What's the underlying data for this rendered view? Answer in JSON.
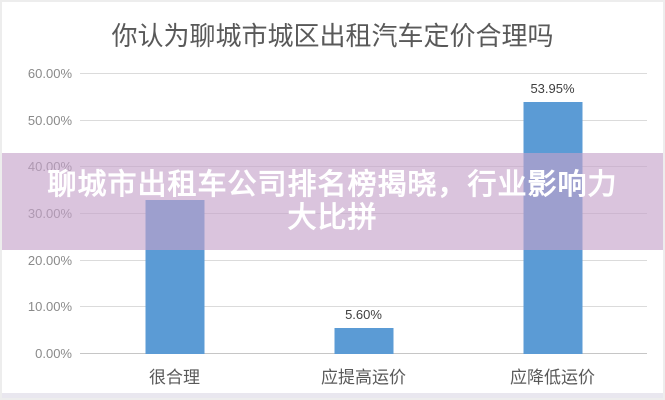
{
  "chart_data": {
    "type": "bar",
    "title": "你认为聊城市城区出租汽车定价合理吗",
    "categories": [
      "很合理",
      "应提高运价",
      "应降低运价"
    ],
    "values": [
      33.0,
      5.6,
      53.95
    ],
    "data_labels": [
      "",
      "5.60%",
      "53.95%"
    ],
    "data_label_note": "value label of first bar is hidden behind the overlay banner; 33.0 estimated from gridlines",
    "yticks": [
      {
        "value": 0,
        "label": "0.00%"
      },
      {
        "value": 10,
        "label": "10.00%"
      },
      {
        "value": 20,
        "label": "20.00%"
      },
      {
        "value": 30,
        "label": "30.00%"
      },
      {
        "value": 40,
        "label": "40.00%"
      },
      {
        "value": 50,
        "label": "50.00%"
      },
      {
        "value": 60,
        "label": "60.00%"
      }
    ],
    "ylim": [
      0,
      60
    ],
    "grid": true,
    "legend": "none",
    "xlabel": "",
    "ylabel": ""
  },
  "overlay_banner": {
    "line1": "聊城市出租车公司排名榜揭晓，行业影响力",
    "line2": "大比拼",
    "background": "rgba(196,162,201,0.63)",
    "text_color": "#ffffff"
  },
  "colors": {
    "bar": "#5b9bd5",
    "title_text": "#595959",
    "axis_tick_text": "#8a8a8a",
    "category_text": "#595959",
    "data_label_text": "#3f3f3f",
    "gridline": "#dbdbdb",
    "page_border": "#ededed",
    "bottom_strip": "#e9e7ef"
  }
}
